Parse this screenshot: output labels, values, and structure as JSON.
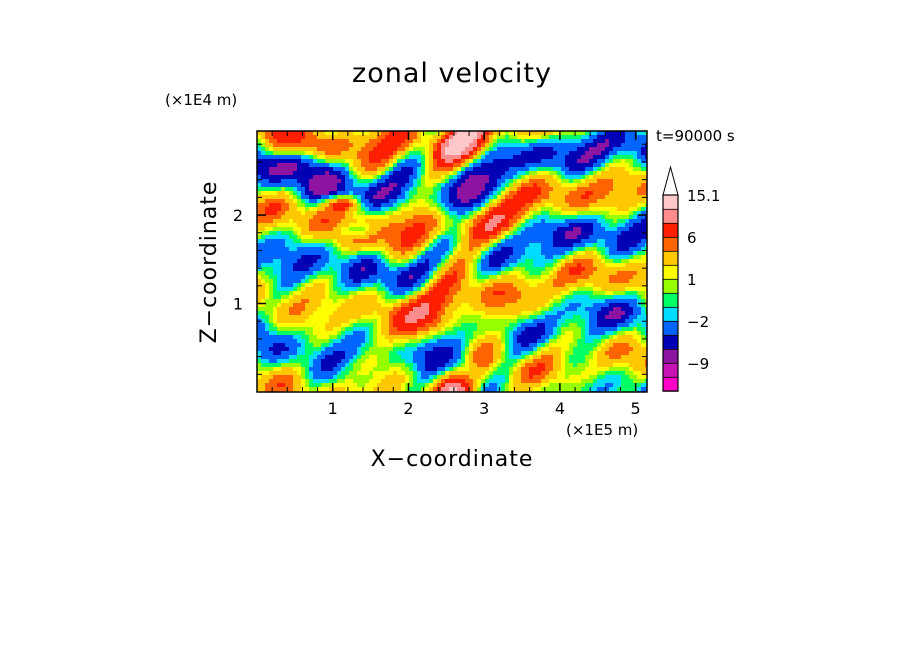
{
  "chart_data": {
    "type": "heatmap",
    "title": "zonal velocity",
    "xlabel": "X−coordinate",
    "ylabel": "Z−coordinate",
    "x_unit_label": "(×1E5 m)",
    "y_unit_label": "(×1E4 m)",
    "annotation": "t=90000 s",
    "xlim": [
      0,
      5.15
    ],
    "ylim": [
      0,
      2.95
    ],
    "x_ticks": [
      {
        "value": 1,
        "label": "1"
      },
      {
        "value": 2,
        "label": "2"
      },
      {
        "value": 3,
        "label": "3"
      },
      {
        "value": 4,
        "label": "4"
      },
      {
        "value": 5,
        "label": "5"
      }
    ],
    "y_ticks": [
      {
        "value": 1,
        "label": "1"
      },
      {
        "value": 2,
        "label": "2"
      }
    ],
    "colorbar": {
      "levels": [
        -15.1,
        -12,
        -9,
        -6,
        -4,
        -2,
        -1,
        0,
        1,
        2,
        4,
        6,
        9,
        12,
        15.1
      ],
      "labels": [
        {
          "value": 15.1,
          "label": "15.1"
        },
        {
          "value": 6,
          "label": "6"
        },
        {
          "value": 1,
          "label": "1"
        },
        {
          "value": -2,
          "label": "−2"
        },
        {
          "value": -9,
          "label": "−9"
        }
      ],
      "colors": [
        "#ff00c8",
        "#c814b4",
        "#8c14a0",
        "#0000b4",
        "#0064ff",
        "#00dcff",
        "#00ff64",
        "#96ff00",
        "#ffff00",
        "#ffc800",
        "#ff6400",
        "#ff1e00",
        "#ff8c8c",
        "#ffc8c8"
      ],
      "extend": "max"
    }
  }
}
